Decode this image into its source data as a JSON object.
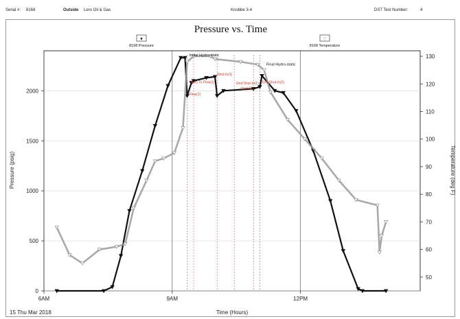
{
  "header": {
    "serial_label": "Serial #:",
    "serial_value": "8168",
    "outside_label": "Outside",
    "company": "Lero Oil & Gas",
    "well": "Knobbe 3-4",
    "test_label": "DST Test Number:",
    "test_value": "4"
  },
  "chart_data": {
    "type": "line",
    "title": "Pressure vs. Time",
    "xlabel": "Time (Hours)",
    "ylabel": "Pressure (psig)",
    "y2label": "Temperature (deg F)",
    "date_label": "15 Thu Mar 2018",
    "xticks": [
      {
        "h": 6,
        "label": "6AM"
      },
      {
        "h": 9,
        "label": "9AM"
      },
      {
        "h": 12,
        "label": "12PM"
      }
    ],
    "xlim": [
      6.0,
      14.8
    ],
    "ylim": [
      0,
      2400
    ],
    "yticks": [
      0,
      500,
      1000,
      1500,
      2000
    ],
    "y2lim": [
      45,
      132
    ],
    "y2ticks": [
      50,
      60,
      70,
      80,
      90,
      100,
      110,
      120,
      130
    ],
    "legend": [
      {
        "label": "8168 Pressure",
        "symbol": "▼"
      },
      {
        "label": "8168 Temperature",
        "symbol": "▽"
      }
    ],
    "series": [
      {
        "name": "8168 Pressure",
        "axis": "left",
        "color": "#111111",
        "x": [
          6.3,
          7.4,
          7.6,
          7.8,
          8.0,
          8.3,
          8.6,
          8.9,
          9.2,
          9.3,
          9.35,
          9.45,
          9.5,
          9.8,
          10.0,
          10.05,
          10.2,
          10.9,
          11.05,
          11.1,
          11.4,
          11.6,
          11.9,
          12.3,
          12.7,
          13.0,
          13.35,
          13.45,
          14.0
        ],
        "y": [
          0,
          0,
          40,
          350,
          800,
          1200,
          1650,
          2050,
          2330,
          2330,
          1950,
          2080,
          2100,
          2130,
          2140,
          1950,
          2000,
          2020,
          2040,
          2150,
          2000,
          1980,
          1800,
          1400,
          900,
          400,
          20,
          0,
          0
        ]
      },
      {
        "name": "8168 Temperature",
        "axis": "right",
        "color": "#9a9a9a",
        "x": [
          6.3,
          6.6,
          6.9,
          7.3,
          7.7,
          7.9,
          8.1,
          8.4,
          8.6,
          8.8,
          9.05,
          9.25,
          9.35,
          9.5,
          9.9,
          10.0,
          10.6,
          11.0,
          11.15,
          11.3,
          11.7,
          12.1,
          12.5,
          12.9,
          13.3,
          13.8,
          13.85,
          13.9,
          14.0
        ],
        "y": [
          68,
          58,
          55,
          60,
          61,
          62,
          75,
          85,
          92,
          93,
          95,
          104,
          128,
          130,
          130,
          129,
          128,
          127,
          125,
          117,
          107,
          100,
          93,
          85,
          78,
          76,
          59,
          65,
          70
        ]
      }
    ],
    "vlines": [
      9.35,
      9.5,
      10.05,
      10.45,
      10.9,
      11.05
    ],
    "annotations": [
      {
        "text": "Initial Hydro-static",
        "x": 9.4,
        "y": 2330,
        "color": "black"
      },
      {
        "text": "Final Hydro-static",
        "x": 11.2,
        "y": 2240,
        "color": "black"
      },
      {
        "text": "Shut-In(1)",
        "x": 10.05,
        "y": 2140,
        "color": "red"
      },
      {
        "text": "End Shut-In(1)",
        "x": 10.5,
        "y": 2050,
        "color": "red"
      },
      {
        "text": "Open To Flow(1)",
        "x": 9.4,
        "y": 2060,
        "color": "red"
      },
      {
        "text": "Open(2)",
        "x": 10.6,
        "y": 2000,
        "color": "red"
      },
      {
        "text": "End Shut-In(2)",
        "x": 11.1,
        "y": 2060,
        "color": "red"
      },
      {
        "text": "Flow(1)",
        "x": 9.4,
        "y": 1940,
        "color": "red"
      }
    ]
  }
}
